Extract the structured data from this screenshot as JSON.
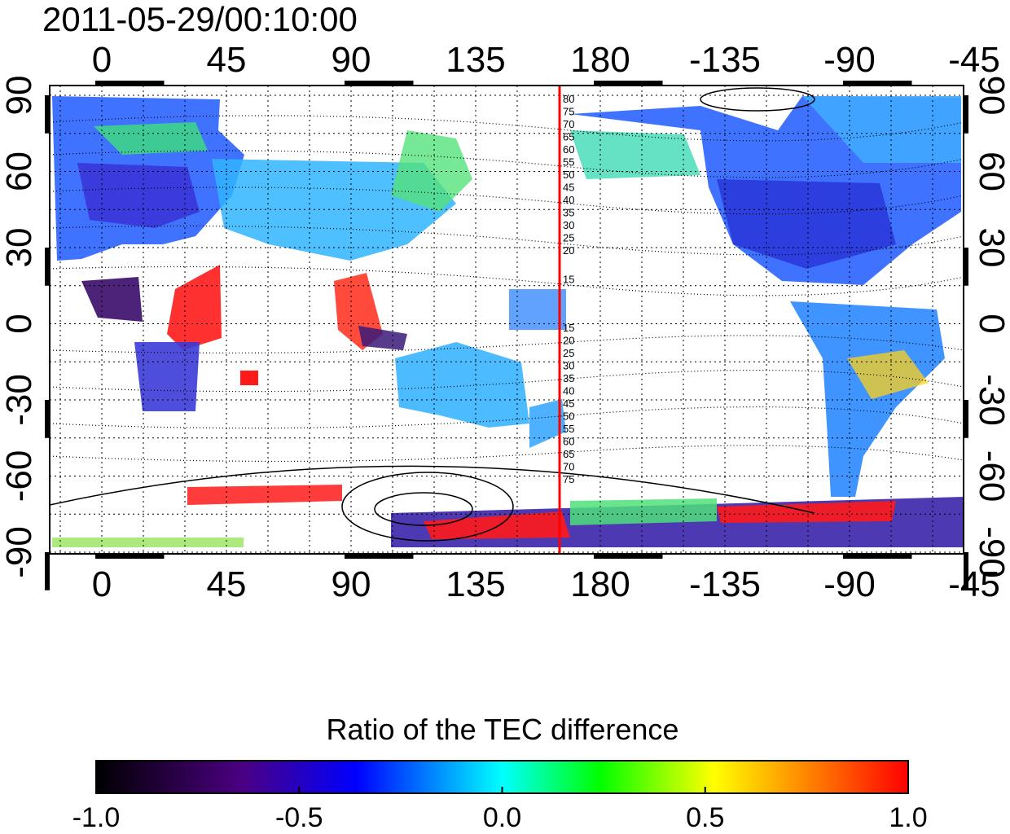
{
  "timestamp": "2011-05-29/00:10:00",
  "map": {
    "x_tick_labels": [
      "0",
      "45",
      "90",
      "135",
      "180",
      "-135",
      "-90",
      "-45"
    ],
    "y_tick_labels": [
      "90",
      "60",
      "30",
      "0",
      "-30",
      "-60",
      "-90"
    ],
    "dateline_longitude": 180,
    "dateline_color": "#ff0000",
    "contour_labels_north": [
      "80",
      "75",
      "70",
      "65",
      "60",
      "55",
      "50",
      "45",
      "40",
      "35",
      "30",
      "25",
      "20",
      "15"
    ],
    "contour_labels_south": [
      "15",
      "20",
      "25",
      "30",
      "35",
      "40",
      "45",
      "50",
      "55",
      "60",
      "65",
      "70",
      "75"
    ]
  },
  "colorbar": {
    "title": "Ratio of the TEC difference",
    "min": -1.0,
    "max": 1.0,
    "tick_labels": [
      "-1.0",
      "-0.5",
      "0.0",
      "0.5",
      "1.0"
    ],
    "colors": [
      "#000000",
      "#4b0082",
      "#0000ff",
      "#00ffff",
      "#00ff00",
      "#ffff00",
      "#ff0000"
    ]
  }
}
